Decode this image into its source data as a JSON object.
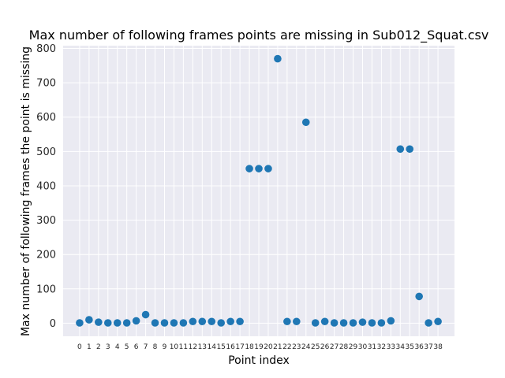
{
  "chart_data": {
    "type": "scatter",
    "title": "Max number of following frames points are missing in Sub012_Squat.csv",
    "xlabel": "Point index",
    "ylabel": "Max number of following frames the point is missing",
    "x": [
      0,
      1,
      2,
      3,
      4,
      5,
      6,
      7,
      8,
      9,
      10,
      11,
      12,
      13,
      14,
      15,
      16,
      17,
      18,
      19,
      20,
      21,
      22,
      23,
      24,
      25,
      26,
      27,
      28,
      29,
      30,
      31,
      32,
      33,
      34,
      35,
      36,
      37,
      38
    ],
    "values": [
      1,
      10,
      3,
      1,
      1,
      1,
      7,
      25,
      1,
      1,
      1,
      1,
      5,
      5,
      5,
      1,
      5,
      5,
      450,
      450,
      450,
      770,
      5,
      5,
      585,
      1,
      5,
      1,
      1,
      1,
      3,
      1,
      1,
      7,
      507,
      507,
      78,
      1,
      5
    ],
    "yticks": [
      0,
      100,
      200,
      300,
      400,
      500,
      600,
      700,
      800
    ],
    "ylim": [
      -38,
      808
    ],
    "xlim": [
      -1.75,
      39.75
    ],
    "grid": true,
    "colors": {
      "marker": "#1f77b4",
      "plot_background": "#eaeaf2",
      "grid": "#ffffff"
    }
  }
}
